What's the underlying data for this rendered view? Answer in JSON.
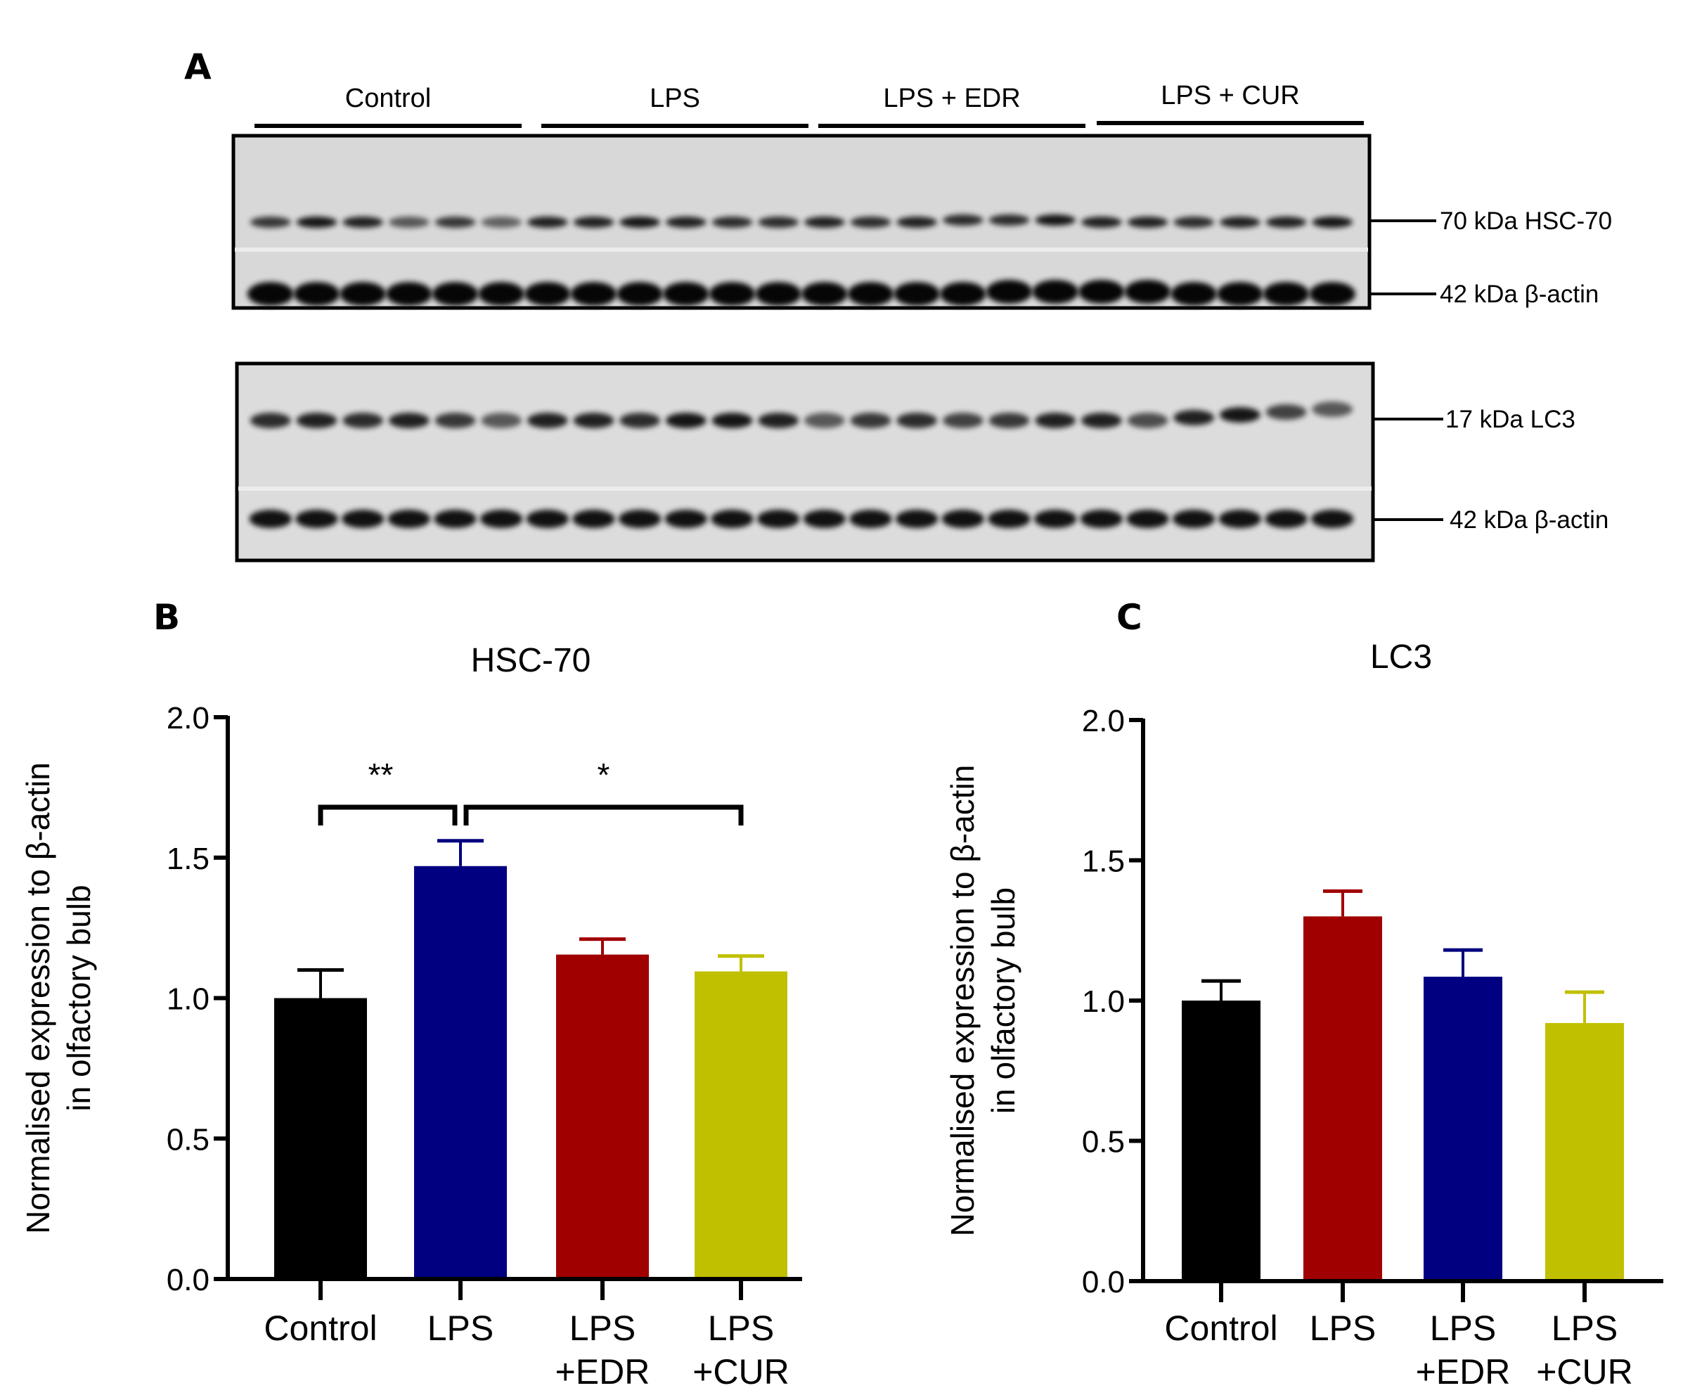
{
  "panel_a": {
    "letter": "A",
    "groups": [
      "Control",
      "LPS",
      "LPS + EDR",
      "LPS + CUR"
    ],
    "lanes_per_group": 6,
    "top_blot_labels": [
      "70 kDa HSC-70",
      "42 kDa β-actin"
    ],
    "bottom_blot_labels": [
      "17 kDa LC3",
      "42 kDa β-actin"
    ]
  },
  "chart_data": [
    {
      "panel": "B",
      "type": "bar",
      "title": "HSC-70",
      "ylabel_line1": "Normalised expression to β-actin",
      "ylabel_line2": "in olfactory bulb",
      "xlabel": "",
      "ylim": [
        0,
        2.0
      ],
      "yticks": [
        "0.0",
        "0.5",
        "1.0",
        "1.5",
        "2.0"
      ],
      "categories": [
        [
          "Control"
        ],
        [
          "LPS"
        ],
        [
          "LPS",
          "+EDR"
        ],
        [
          "LPS",
          "+CUR"
        ]
      ],
      "values": [
        1.0,
        1.47,
        1.155,
        1.095
      ],
      "errors": [
        0.1,
        0.09,
        0.055,
        0.055
      ],
      "colors": [
        "#000000",
        "#000080",
        "#a00000",
        "#c0c000"
      ],
      "significance": [
        {
          "from": 0,
          "to": 1,
          "label": "**"
        },
        {
          "from": 1,
          "to": 3,
          "label": "*"
        }
      ]
    },
    {
      "panel": "C",
      "type": "bar",
      "title": "LC3",
      "ylabel_line1": "Normalised expression to β-actin",
      "ylabel_line2": "in olfactory bulb",
      "xlabel": "",
      "ylim": [
        0,
        2.0
      ],
      "yticks": [
        "0.0",
        "0.5",
        "1.0",
        "1.5",
        "2.0"
      ],
      "categories": [
        [
          "Control"
        ],
        [
          "LPS"
        ],
        [
          "LPS",
          "+EDR"
        ],
        [
          "LPS",
          "+CUR"
        ]
      ],
      "values": [
        1.0,
        1.3,
        1.085,
        0.92
      ],
      "errors": [
        0.07,
        0.09,
        0.095,
        0.11
      ],
      "colors": [
        "#000000",
        "#a00000",
        "#000080",
        "#c0c000"
      ],
      "significance": []
    }
  ]
}
